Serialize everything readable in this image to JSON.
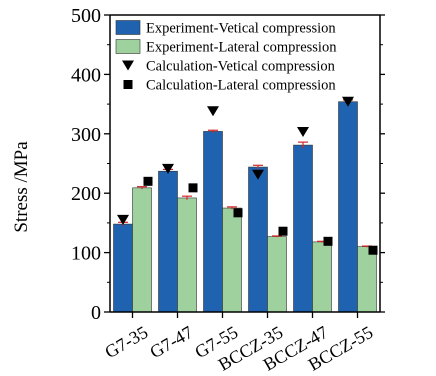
{
  "chart_data": {
    "type": "bar",
    "title": "",
    "xlabel": "",
    "ylabel": "Stress /MPa",
    "ylim": [
      0,
      500
    ],
    "yticks": [
      0,
      100,
      200,
      300,
      400,
      500
    ],
    "grid": false,
    "legend_position": "top-left",
    "categories": [
      "G7-35",
      "G7-47",
      "G7-55",
      "BCCZ-35",
      "BCCZ-47",
      "BCCZ-55"
    ],
    "series": [
      {
        "name": "Experiment-Vetical compression",
        "kind": "bar",
        "color": "#1f63b0",
        "values": [
          148,
          237,
          304,
          244,
          281,
          354
        ],
        "errors": [
          3,
          3,
          2,
          3,
          5,
          3
        ]
      },
      {
        "name": "Experiment-Lateral compression",
        "kind": "bar",
        "color": "#9fd19e",
        "values": [
          209,
          192,
          175,
          127,
          118,
          110
        ],
        "errors": [
          2,
          3,
          2,
          1,
          1,
          1
        ]
      },
      {
        "name": "Calculation-Vetical compression",
        "kind": "marker",
        "marker": "triangle-down",
        "values": [
          155,
          241,
          338,
          231,
          303,
          354
        ]
      },
      {
        "name": "Calculation-Lateral compression",
        "kind": "marker",
        "marker": "square",
        "values": [
          220,
          209,
          167,
          136,
          119,
          104
        ]
      }
    ]
  }
}
